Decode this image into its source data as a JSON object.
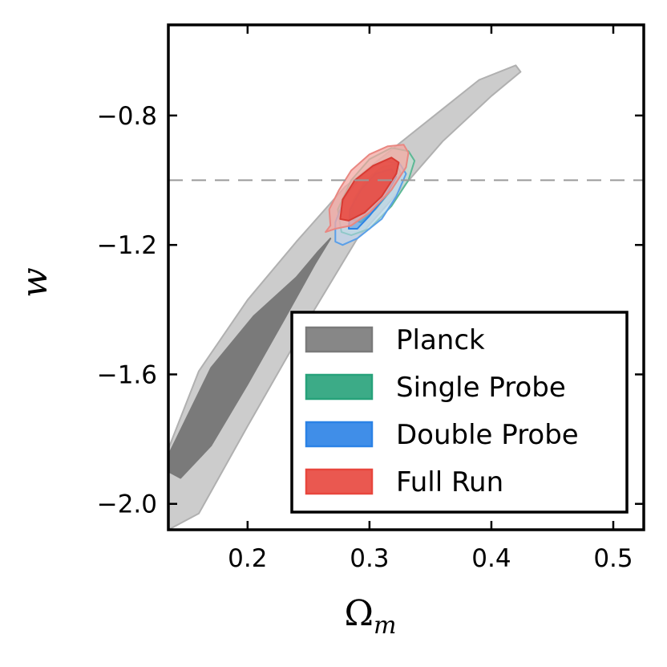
{
  "chart_data": {
    "type": "contour",
    "xlabel": "Ω",
    "xlabel_sub": "m",
    "ylabel": "w",
    "xlim": [
      0.135,
      0.525
    ],
    "ylim": [
      -2.08,
      -0.52
    ],
    "xticks": [
      0.2,
      0.3,
      0.4,
      0.5
    ],
    "xtick_labels": [
      "0.2",
      "0.3",
      "0.4",
      "0.5"
    ],
    "yticks": [
      -0.8,
      -1.2,
      -1.6,
      -2.0
    ],
    "ytick_labels": [
      "−0.8",
      "−1.2",
      "−1.6",
      "−2.0"
    ],
    "reference_line": {
      "axis": "y",
      "value": -1.0,
      "style": "dashed",
      "color": "#999999"
    },
    "legend_position": "lower-right",
    "colors": {
      "planck_outer": "#cccccc",
      "planck_inner": "#7a7a7a",
      "single": "#27a27a",
      "double": "#2b82e6",
      "full": "#e8463d"
    },
    "series": [
      {
        "name": "Planck",
        "legend_fill": "#7a7a7a",
        "legend_edge": "#7a7a7a",
        "contours": [
          {
            "level": "outer",
            "fill": "#cccccc",
            "edge": "#b0b0b0",
            "opacity": 1,
            "points": [
              [
                0.135,
                -1.83
              ],
              [
                0.16,
                -1.59
              ],
              [
                0.2,
                -1.37
              ],
              [
                0.24,
                -1.19
              ],
              [
                0.28,
                -1.02
              ],
              [
                0.32,
                -0.9
              ],
              [
                0.36,
                -0.78
              ],
              [
                0.39,
                -0.69
              ],
              [
                0.42,
                -0.645
              ],
              [
                0.424,
                -0.665
              ],
              [
                0.4,
                -0.74
              ],
              [
                0.36,
                -0.88
              ],
              [
                0.33,
                -1.01
              ],
              [
                0.29,
                -1.18
              ],
              [
                0.25,
                -1.43
              ],
              [
                0.2,
                -1.76
              ],
              [
                0.16,
                -2.03
              ],
              [
                0.135,
                -2.08
              ]
            ]
          },
          {
            "level": "inner",
            "fill": "#7a7a7a",
            "edge": "#7a7a7a",
            "opacity": 1,
            "points": [
              [
                0.135,
                -1.85
              ],
              [
                0.17,
                -1.58
              ],
              [
                0.205,
                -1.42
              ],
              [
                0.24,
                -1.3
              ],
              [
                0.258,
                -1.22
              ],
              [
                0.268,
                -1.18
              ],
              [
                0.255,
                -1.26
              ],
              [
                0.23,
                -1.43
              ],
              [
                0.2,
                -1.63
              ],
              [
                0.17,
                -1.82
              ],
              [
                0.145,
                -1.92
              ],
              [
                0.135,
                -1.9
              ]
            ]
          }
        ]
      },
      {
        "name": "Single Probe",
        "legend_fill": "#27a27a",
        "legend_edge": "#27a27a",
        "contours": [
          {
            "level": "outer",
            "fill": "#bfe3d3",
            "edge": "#5cb895",
            "opacity": 0.55,
            "points": [
              [
                0.277,
                -1.16
              ],
              [
                0.274,
                -1.09
              ],
              [
                0.285,
                -1.0
              ],
              [
                0.3,
                -0.935
              ],
              [
                0.318,
                -0.9
              ],
              [
                0.332,
                -0.91
              ],
              [
                0.337,
                -0.94
              ],
              [
                0.332,
                -1.0
              ],
              [
                0.318,
                -1.08
              ],
              [
                0.3,
                -1.15
              ],
              [
                0.285,
                -1.17
              ]
            ]
          },
          {
            "level": "inner",
            "fill": "#27a27a",
            "edge": "#27a27a",
            "opacity": 0.45,
            "points": [
              [
                0.285,
                -1.12
              ],
              [
                0.287,
                -1.06
              ],
              [
                0.297,
                -1.0
              ],
              [
                0.31,
                -0.96
              ],
              [
                0.322,
                -0.95
              ],
              [
                0.326,
                -0.98
              ],
              [
                0.318,
                -1.03
              ],
              [
                0.305,
                -1.09
              ],
              [
                0.293,
                -1.13
              ]
            ]
          }
        ]
      },
      {
        "name": "Double Probe",
        "legend_fill": "#2b82e6",
        "legend_edge": "#2b82e6",
        "contours": [
          {
            "level": "outer",
            "fill": "#bcd6f4",
            "edge": "#5a9fe8",
            "opacity": 0.55,
            "points": [
              [
                0.272,
                -1.19
              ],
              [
                0.272,
                -1.13
              ],
              [
                0.28,
                -1.05
              ],
              [
                0.295,
                -0.98
              ],
              [
                0.312,
                -0.94
              ],
              [
                0.325,
                -0.95
              ],
              [
                0.33,
                -0.98
              ],
              [
                0.322,
                -1.05
              ],
              [
                0.31,
                -1.12
              ],
              [
                0.29,
                -1.18
              ],
              [
                0.278,
                -1.2
              ]
            ]
          },
          {
            "level": "inner",
            "fill": "#2b82e6",
            "edge": "#2b82e6",
            "opacity": 0.4,
            "points": [
              [
                0.283,
                -1.15
              ],
              [
                0.284,
                -1.09
              ],
              [
                0.293,
                -1.03
              ],
              [
                0.305,
                -0.98
              ],
              [
                0.318,
                -0.965
              ],
              [
                0.322,
                -0.99
              ],
              [
                0.313,
                -1.05
              ],
              [
                0.3,
                -1.11
              ],
              [
                0.29,
                -1.15
              ]
            ]
          }
        ]
      },
      {
        "name": "Full Run",
        "legend_fill": "#e8463d",
        "legend_edge": "#e8463d",
        "contours": [
          {
            "level": "outer",
            "fill": "#f4a8a3",
            "edge": "#e98781",
            "opacity": 0.75,
            "points": [
              [
                0.264,
                -1.16
              ],
              [
                0.268,
                -1.14
              ],
              [
                0.267,
                -1.09
              ],
              [
                0.275,
                -1.03
              ],
              [
                0.285,
                -0.97
              ],
              [
                0.3,
                -0.92
              ],
              [
                0.315,
                -0.895
              ],
              [
                0.328,
                -0.89
              ],
              [
                0.332,
                -0.915
              ],
              [
                0.33,
                -0.96
              ],
              [
                0.318,
                -1.03
              ],
              [
                0.3,
                -1.1
              ],
              [
                0.285,
                -1.14
              ],
              [
                0.272,
                -1.15
              ]
            ]
          },
          {
            "level": "inner",
            "fill": "#e8463d",
            "edge": "#d83a32",
            "opacity": 0.85,
            "points": [
              [
                0.276,
                -1.12
              ],
              [
                0.278,
                -1.06
              ],
              [
                0.288,
                -1.0
              ],
              [
                0.303,
                -0.955
              ],
              [
                0.318,
                -0.93
              ],
              [
                0.324,
                -0.945
              ],
              [
                0.322,
                -0.98
              ],
              [
                0.31,
                -1.05
              ],
              [
                0.296,
                -1.1
              ],
              [
                0.283,
                -1.125
              ]
            ]
          }
        ]
      }
    ]
  }
}
